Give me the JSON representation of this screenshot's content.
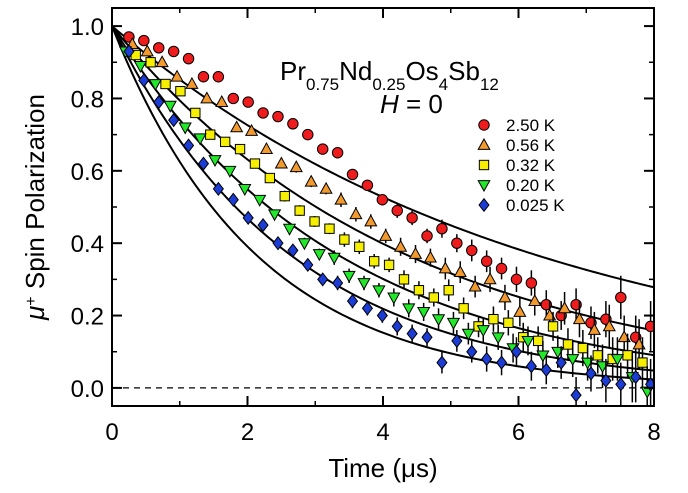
{
  "chart_data": {
    "type": "scatter",
    "xlabel_main": "Time (",
    "xlabel_mu": "μ",
    "xlabel_unit": "s)",
    "ylabel_mu": "μ",
    "ylabel_sup": "+",
    "ylabel_rest": " Spin Polarization",
    "xlim": [
      0,
      8
    ],
    "ylim": [
      -0.05,
      1.05
    ],
    "xticks": [
      0,
      2,
      4,
      6,
      8
    ],
    "yticks": [
      0.0,
      0.2,
      0.4,
      0.6,
      0.8,
      1.0
    ],
    "xtick_labels": [
      "0",
      "2",
      "4",
      "6",
      "8"
    ],
    "ytick_labels": [
      "0.0",
      "0.2",
      "0.4",
      "0.6",
      "0.8",
      "1.0"
    ],
    "grid": false,
    "legend_position": "top-right",
    "zero_line": {
      "y": 0,
      "style": "dashed"
    },
    "annotation": {
      "compound": {
        "parts": [
          {
            "text": "Pr",
            "sub": false
          },
          {
            "text": "0.75",
            "sub": true
          },
          {
            "text": "Nd",
            "sub": false
          },
          {
            "text": "0.25",
            "sub": true
          },
          {
            "text": "Os",
            "sub": false
          },
          {
            "text": "4",
            "sub": true
          },
          {
            "text": "Sb",
            "sub": false
          },
          {
            "text": "12",
            "sub": true
          }
        ]
      },
      "field_var": "H",
      "field_rest": " = 0"
    },
    "series": [
      {
        "name": "2.50 K",
        "marker": "circle",
        "color": "#ee1c1c",
        "fit_lambda": 0.16,
        "x": [
          0.25,
          0.47,
          0.69,
          0.91,
          1.13,
          1.35,
          1.57,
          1.79,
          2.01,
          2.23,
          2.45,
          2.67,
          2.89,
          3.11,
          3.33,
          3.55,
          3.77,
          3.99,
          4.21,
          4.43,
          4.65,
          4.87,
          5.09,
          5.31,
          5.53,
          5.75,
          5.97,
          6.19,
          6.41,
          6.63,
          6.85,
          7.07,
          7.29,
          7.51,
          7.73,
          7.95
        ],
        "y": [
          0.97,
          0.96,
          0.94,
          0.93,
          0.91,
          0.86,
          0.86,
          0.8,
          0.79,
          0.76,
          0.75,
          0.73,
          0.7,
          0.66,
          0.65,
          0.59,
          0.56,
          0.52,
          0.49,
          0.47,
          0.42,
          0.44,
          0.4,
          0.38,
          0.35,
          0.33,
          0.3,
          0.29,
          0.23,
          0.2,
          0.23,
          0.18,
          0.19,
          0.25,
          0.14,
          0.17
        ],
        "err": [
          0.01,
          0.01,
          0.01,
          0.01,
          0.01,
          0.01,
          0.01,
          0.01,
          0.01,
          0.01,
          0.01,
          0.01,
          0.01,
          0.01,
          0.01,
          0.01,
          0.015,
          0.015,
          0.02,
          0.02,
          0.02,
          0.025,
          0.025,
          0.03,
          0.03,
          0.03,
          0.035,
          0.035,
          0.04,
          0.04,
          0.045,
          0.045,
          0.05,
          0.06,
          0.06,
          0.07
        ]
      },
      {
        "name": "0.56 K",
        "marker": "triangle-up",
        "color": "#f29a2e",
        "fit_lambda": 0.23,
        "x": [
          0.3,
          0.52,
          0.74,
          0.96,
          1.18,
          1.4,
          1.62,
          1.84,
          2.06,
          2.28,
          2.5,
          2.72,
          2.94,
          3.16,
          3.38,
          3.6,
          3.82,
          4.04,
          4.26,
          4.48,
          4.7,
          4.92,
          5.14,
          5.36,
          5.58,
          5.8,
          6.02,
          6.24,
          6.46,
          6.68,
          6.9,
          7.12,
          7.34,
          7.56,
          7.78
        ],
        "y": [
          0.95,
          0.93,
          0.9,
          0.86,
          0.84,
          0.8,
          0.79,
          0.72,
          0.71,
          0.66,
          0.62,
          0.61,
          0.57,
          0.55,
          0.52,
          0.48,
          0.46,
          0.42,
          0.39,
          0.37,
          0.36,
          0.33,
          0.32,
          0.28,
          0.3,
          0.25,
          0.21,
          0.24,
          0.2,
          0.22,
          0.19,
          0.16,
          0.17,
          0.14,
          0.12
        ],
        "err": [
          0.01,
          0.01,
          0.01,
          0.01,
          0.01,
          0.01,
          0.01,
          0.01,
          0.01,
          0.01,
          0.01,
          0.015,
          0.015,
          0.015,
          0.02,
          0.02,
          0.02,
          0.02,
          0.025,
          0.025,
          0.025,
          0.03,
          0.03,
          0.03,
          0.035,
          0.035,
          0.04,
          0.04,
          0.04,
          0.045,
          0.05,
          0.05,
          0.06,
          0.06,
          0.07
        ]
      },
      {
        "name": "0.32 K",
        "marker": "square",
        "color": "#f6f000",
        "fit_lambda": 0.3,
        "x": [
          0.35,
          0.57,
          0.79,
          1.01,
          1.23,
          1.45,
          1.67,
          1.89,
          2.11,
          2.33,
          2.55,
          2.77,
          2.99,
          3.21,
          3.43,
          3.65,
          3.87,
          4.09,
          4.31,
          4.53,
          4.75,
          4.97,
          5.19,
          5.41,
          5.63,
          5.85,
          6.07,
          6.29,
          6.51,
          6.73,
          6.95,
          7.17,
          7.39,
          7.61,
          7.83
        ],
        "y": [
          0.92,
          0.9,
          0.84,
          0.82,
          0.76,
          0.7,
          0.68,
          0.66,
          0.62,
          0.58,
          0.53,
          0.49,
          0.46,
          0.44,
          0.41,
          0.39,
          0.35,
          0.34,
          0.3,
          0.27,
          0.25,
          0.27,
          0.22,
          0.17,
          0.19,
          0.18,
          0.14,
          0.13,
          0.17,
          0.12,
          0.11,
          0.09,
          0.08,
          0.09,
          0.07
        ],
        "err": [
          0.01,
          0.01,
          0.01,
          0.01,
          0.01,
          0.01,
          0.01,
          0.01,
          0.01,
          0.01,
          0.015,
          0.015,
          0.015,
          0.015,
          0.02,
          0.02,
          0.02,
          0.02,
          0.025,
          0.025,
          0.025,
          0.03,
          0.03,
          0.03,
          0.035,
          0.035,
          0.04,
          0.04,
          0.04,
          0.045,
          0.05,
          0.05,
          0.06,
          0.06,
          0.07
        ]
      },
      {
        "name": "0.20 K",
        "marker": "triangle-down",
        "color": "#22e82a",
        "fit_lambda": 0.38,
        "x": [
          0.2,
          0.42,
          0.64,
          0.86,
          1.08,
          1.3,
          1.52,
          1.74,
          1.96,
          2.18,
          2.4,
          2.62,
          2.84,
          3.06,
          3.28,
          3.5,
          3.72,
          3.94,
          4.16,
          4.38,
          4.6,
          4.82,
          5.04,
          5.26,
          5.48,
          5.7,
          5.92,
          6.14,
          6.36,
          6.58,
          6.8,
          7.02,
          7.24,
          7.46,
          7.68,
          7.9
        ],
        "y": [
          0.93,
          0.89,
          0.84,
          0.78,
          0.72,
          0.69,
          0.63,
          0.6,
          0.55,
          0.52,
          0.48,
          0.44,
          0.4,
          0.37,
          0.36,
          0.31,
          0.29,
          0.27,
          0.25,
          0.22,
          0.21,
          0.19,
          0.18,
          0.15,
          0.16,
          0.14,
          0.11,
          0.13,
          0.09,
          0.1,
          0.08,
          0.07,
          0.06,
          0.08,
          0.03,
          -0.01
        ],
        "err": [
          0.01,
          0.01,
          0.01,
          0.01,
          0.01,
          0.01,
          0.01,
          0.01,
          0.01,
          0.01,
          0.01,
          0.015,
          0.015,
          0.015,
          0.02,
          0.02,
          0.02,
          0.02,
          0.025,
          0.025,
          0.025,
          0.03,
          0.03,
          0.03,
          0.035,
          0.035,
          0.04,
          0.04,
          0.04,
          0.045,
          0.05,
          0.05,
          0.06,
          0.06,
          0.07,
          0.07
        ]
      },
      {
        "name": "0.025 K",
        "marker": "diamond",
        "color": "#1c3cd6",
        "fit_lambda": 0.47,
        "x": [
          0.25,
          0.47,
          0.69,
          0.91,
          1.13,
          1.35,
          1.57,
          1.79,
          2.01,
          2.23,
          2.45,
          2.67,
          2.89,
          3.11,
          3.33,
          3.55,
          3.77,
          3.99,
          4.21,
          4.43,
          4.65,
          4.87,
          5.09,
          5.31,
          5.53,
          5.75,
          5.97,
          6.19,
          6.41,
          6.63,
          6.85,
          7.07,
          7.29,
          7.51,
          7.73,
          7.95
        ],
        "y": [
          0.93,
          0.85,
          0.79,
          0.74,
          0.67,
          0.62,
          0.55,
          0.52,
          0.47,
          0.45,
          0.4,
          0.38,
          0.34,
          0.3,
          0.29,
          0.24,
          0.22,
          0.2,
          0.17,
          0.15,
          0.14,
          0.07,
          0.13,
          0.1,
          0.08,
          0.07,
          0.1,
          0.06,
          0.05,
          0.07,
          -0.02,
          0.04,
          0.02,
          0.01,
          0.03,
          0.01
        ],
        "err": [
          0.01,
          0.01,
          0.01,
          0.01,
          0.01,
          0.01,
          0.01,
          0.01,
          0.01,
          0.01,
          0.01,
          0.015,
          0.015,
          0.015,
          0.02,
          0.02,
          0.02,
          0.02,
          0.025,
          0.025,
          0.025,
          0.03,
          0.03,
          0.03,
          0.035,
          0.035,
          0.04,
          0.04,
          0.04,
          0.045,
          0.05,
          0.05,
          0.06,
          0.06,
          0.07,
          0.07
        ]
      }
    ]
  }
}
